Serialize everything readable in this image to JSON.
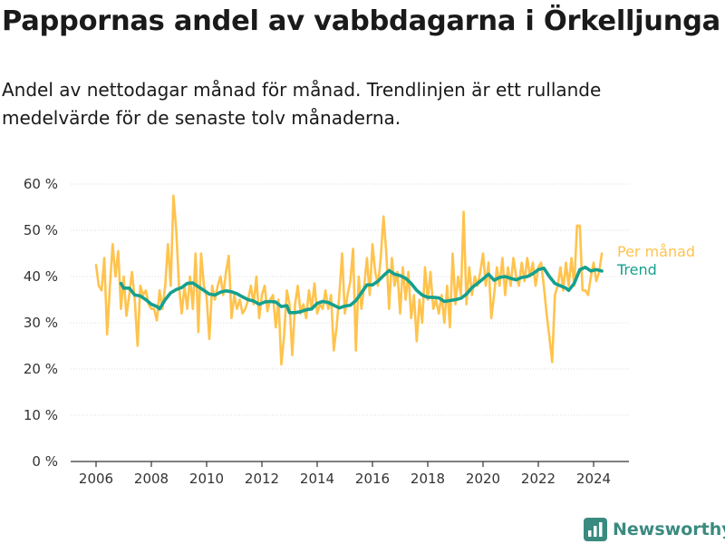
{
  "title": "Pappornas andel av vabbdagarna i Örkelljunga",
  "subtitle": "Andel av nettodagar månad för månad. Trendlinjen är ett rullande medelvärde för de senaste tolv månaderna.",
  "brand": "Newsworthy",
  "colors": {
    "monthly": "#FFC34D",
    "trend": "#16A08E",
    "axis": "#333333",
    "grid": "#DCDCDC",
    "brand": "#3A8A7F"
  },
  "chart_data": {
    "type": "line",
    "x_unit": "year",
    "xlim": [
      2006,
      2024.6
    ],
    "ylim": [
      0,
      60
    ],
    "x_ticks": [
      2006,
      2008,
      2010,
      2012,
      2014,
      2016,
      2018,
      2020,
      2022,
      2024
    ],
    "x_tick_labels": [
      "2006",
      "2008",
      "2010",
      "2012",
      "2014",
      "2016",
      "2018",
      "2020",
      "2022",
      "2024"
    ],
    "y_ticks": [
      0,
      10,
      20,
      30,
      40,
      50,
      60
    ],
    "y_tick_labels": [
      "0 %",
      "10 %",
      "20 %",
      "30 %",
      "40 %",
      "50 %",
      "60 %"
    ],
    "grid": "horizontal",
    "legend": "right-end-labels",
    "series": [
      {
        "name": "Per månad",
        "color": "#FFC34D",
        "points": [
          [
            2006.0,
            42.5
          ],
          [
            2006.1,
            38
          ],
          [
            2006.2,
            37
          ],
          [
            2006.3,
            44
          ],
          [
            2006.4,
            27.5
          ],
          [
            2006.5,
            38
          ],
          [
            2006.6,
            47
          ],
          [
            2006.7,
            40
          ],
          [
            2006.8,
            45.5
          ],
          [
            2006.9,
            33
          ],
          [
            2007.0,
            40
          ],
          [
            2007.1,
            31.5
          ],
          [
            2007.2,
            36
          ],
          [
            2007.3,
            41
          ],
          [
            2007.4,
            35
          ],
          [
            2007.5,
            25
          ],
          [
            2007.6,
            38
          ],
          [
            2007.7,
            36
          ],
          [
            2007.8,
            37
          ],
          [
            2007.9,
            34
          ],
          [
            2008.0,
            33
          ],
          [
            2008.1,
            33
          ],
          [
            2008.2,
            30.5
          ],
          [
            2008.3,
            37
          ],
          [
            2008.4,
            33
          ],
          [
            2008.5,
            38
          ],
          [
            2008.6,
            47
          ],
          [
            2008.7,
            38
          ],
          [
            2008.8,
            57.5
          ],
          [
            2008.9,
            50
          ],
          [
            2009.0,
            38
          ],
          [
            2009.1,
            32
          ],
          [
            2009.2,
            38
          ],
          [
            2009.3,
            33
          ],
          [
            2009.4,
            40
          ],
          [
            2009.5,
            33
          ],
          [
            2009.6,
            45
          ],
          [
            2009.7,
            28
          ],
          [
            2009.8,
            45
          ],
          [
            2009.9,
            38
          ],
          [
            2010.0,
            35.5
          ],
          [
            2010.1,
            26.5
          ],
          [
            2010.2,
            38
          ],
          [
            2010.3,
            35
          ],
          [
            2010.4,
            38
          ],
          [
            2010.5,
            40
          ],
          [
            2010.6,
            36
          ],
          [
            2010.7,
            41
          ],
          [
            2010.8,
            44.5
          ],
          [
            2010.9,
            31
          ],
          [
            2011.0,
            36
          ],
          [
            2011.1,
            33
          ],
          [
            2011.2,
            35
          ],
          [
            2011.3,
            32
          ],
          [
            2011.4,
            33
          ],
          [
            2011.5,
            35
          ],
          [
            2011.6,
            38
          ],
          [
            2011.7,
            34
          ],
          [
            2011.8,
            40
          ],
          [
            2011.9,
            31
          ],
          [
            2012.0,
            36
          ],
          [
            2012.1,
            38
          ],
          [
            2012.2,
            32.5
          ],
          [
            2012.3,
            35
          ],
          [
            2012.4,
            36
          ],
          [
            2012.5,
            29
          ],
          [
            2012.6,
            35
          ],
          [
            2012.7,
            21
          ],
          [
            2012.8,
            27
          ],
          [
            2012.9,
            37
          ],
          [
            2013.0,
            34
          ],
          [
            2013.1,
            23
          ],
          [
            2013.2,
            34
          ],
          [
            2013.3,
            38
          ],
          [
            2013.4,
            32
          ],
          [
            2013.5,
            34
          ],
          [
            2013.6,
            31
          ],
          [
            2013.7,
            37
          ],
          [
            2013.8,
            33
          ],
          [
            2013.9,
            38.5
          ],
          [
            2014.0,
            32
          ],
          [
            2014.1,
            34
          ],
          [
            2014.2,
            33
          ],
          [
            2014.3,
            37
          ],
          [
            2014.4,
            33
          ],
          [
            2014.5,
            36
          ],
          [
            2014.6,
            24
          ],
          [
            2014.7,
            29
          ],
          [
            2014.8,
            36
          ],
          [
            2014.9,
            45
          ],
          [
            2015.0,
            32
          ],
          [
            2015.1,
            36
          ],
          [
            2015.2,
            39
          ],
          [
            2015.3,
            46
          ],
          [
            2015.4,
            24
          ],
          [
            2015.5,
            40
          ],
          [
            2015.6,
            33
          ],
          [
            2015.7,
            38
          ],
          [
            2015.8,
            44
          ],
          [
            2015.9,
            36
          ],
          [
            2016.0,
            47
          ],
          [
            2016.1,
            41
          ],
          [
            2016.2,
            38
          ],
          [
            2016.3,
            44
          ],
          [
            2016.4,
            53
          ],
          [
            2016.5,
            45
          ],
          [
            2016.6,
            33
          ],
          [
            2016.7,
            44
          ],
          [
            2016.8,
            38
          ],
          [
            2016.9,
            41
          ],
          [
            2017.0,
            32
          ],
          [
            2017.1,
            42
          ],
          [
            2017.2,
            35
          ],
          [
            2017.3,
            41
          ],
          [
            2017.4,
            31
          ],
          [
            2017.5,
            36
          ],
          [
            2017.6,
            26
          ],
          [
            2017.7,
            35
          ],
          [
            2017.8,
            30
          ],
          [
            2017.9,
            42
          ],
          [
            2018.0,
            35
          ],
          [
            2018.1,
            41
          ],
          [
            2018.2,
            33
          ],
          [
            2018.3,
            35
          ],
          [
            2018.4,
            32
          ],
          [
            2018.5,
            36
          ],
          [
            2018.6,
            30
          ],
          [
            2018.7,
            38
          ],
          [
            2018.8,
            29
          ],
          [
            2018.9,
            45
          ],
          [
            2019.0,
            34
          ],
          [
            2019.1,
            40
          ],
          [
            2019.2,
            36
          ],
          [
            2019.3,
            54
          ],
          [
            2019.4,
            34
          ],
          [
            2019.5,
            42
          ],
          [
            2019.6,
            36
          ],
          [
            2019.7,
            40
          ],
          [
            2019.8,
            38
          ],
          [
            2019.9,
            41
          ],
          [
            2020.0,
            45
          ],
          [
            2020.1,
            38
          ],
          [
            2020.2,
            43
          ],
          [
            2020.3,
            31
          ],
          [
            2020.4,
            36
          ],
          [
            2020.5,
            42
          ],
          [
            2020.6,
            38
          ],
          [
            2020.7,
            44
          ],
          [
            2020.8,
            36
          ],
          [
            2020.9,
            42
          ],
          [
            2021.0,
            38
          ],
          [
            2021.1,
            44
          ],
          [
            2021.2,
            40
          ],
          [
            2021.3,
            38
          ],
          [
            2021.4,
            43
          ],
          [
            2021.5,
            39
          ],
          [
            2021.6,
            44
          ],
          [
            2021.7,
            40
          ],
          [
            2021.8,
            43
          ],
          [
            2021.9,
            38
          ],
          [
            2022.0,
            42
          ],
          [
            2022.1,
            43
          ],
          [
            2022.2,
            38
          ],
          [
            2022.3,
            32
          ],
          [
            2022.4,
            27
          ],
          [
            2022.5,
            21.5
          ],
          [
            2022.6,
            36
          ],
          [
            2022.7,
            38
          ],
          [
            2022.8,
            42
          ],
          [
            2022.9,
            37
          ],
          [
            2023.0,
            43
          ],
          [
            2023.1,
            38
          ],
          [
            2023.2,
            44
          ],
          [
            2023.3,
            38
          ],
          [
            2023.4,
            51
          ],
          [
            2023.5,
            51
          ],
          [
            2023.6,
            37
          ],
          [
            2023.7,
            37
          ],
          [
            2023.8,
            36
          ],
          [
            2023.9,
            40
          ],
          [
            2024.0,
            43
          ],
          [
            2024.1,
            39
          ],
          [
            2024.2,
            41
          ],
          [
            2024.3,
            45
          ]
        ]
      },
      {
        "name": "Trend",
        "color": "#16A08E",
        "points": [
          [
            2006.9,
            38.5
          ],
          [
            2007.0,
            37.5
          ],
          [
            2007.2,
            37.5
          ],
          [
            2007.4,
            36
          ],
          [
            2007.6,
            35.8
          ],
          [
            2007.8,
            35
          ],
          [
            2008.0,
            34
          ],
          [
            2008.2,
            33.5
          ],
          [
            2008.3,
            33
          ],
          [
            2008.5,
            35
          ],
          [
            2008.7,
            36.5
          ],
          [
            2008.9,
            37.2
          ],
          [
            2009.1,
            37.6
          ],
          [
            2009.3,
            38.5
          ],
          [
            2009.5,
            38.6
          ],
          [
            2009.7,
            37.8
          ],
          [
            2009.9,
            37
          ],
          [
            2010.1,
            36.2
          ],
          [
            2010.3,
            36
          ],
          [
            2010.5,
            36.6
          ],
          [
            2010.7,
            36.9
          ],
          [
            2010.9,
            36.7
          ],
          [
            2011.1,
            36.3
          ],
          [
            2011.3,
            35.6
          ],
          [
            2011.5,
            35
          ],
          [
            2011.7,
            34.7
          ],
          [
            2011.9,
            34
          ],
          [
            2012.1,
            34.5
          ],
          [
            2012.3,
            34.6
          ],
          [
            2012.5,
            34.5
          ],
          [
            2012.7,
            33.5
          ],
          [
            2012.9,
            33.7
          ],
          [
            2013.0,
            32.2
          ],
          [
            2013.2,
            32.2
          ],
          [
            2013.4,
            32.4
          ],
          [
            2013.6,
            32.8
          ],
          [
            2013.8,
            33
          ],
          [
            2014.0,
            34.2
          ],
          [
            2014.2,
            34.6
          ],
          [
            2014.4,
            34.4
          ],
          [
            2014.6,
            33.8
          ],
          [
            2014.8,
            33.2
          ],
          [
            2015.0,
            33.6
          ],
          [
            2015.2,
            33.8
          ],
          [
            2015.4,
            34.8
          ],
          [
            2015.6,
            36.5
          ],
          [
            2015.8,
            38.2
          ],
          [
            2016.0,
            38.2
          ],
          [
            2016.2,
            39
          ],
          [
            2016.4,
            40.2
          ],
          [
            2016.6,
            41.3
          ],
          [
            2016.8,
            40.5
          ],
          [
            2017.0,
            40.2
          ],
          [
            2017.2,
            39.6
          ],
          [
            2017.4,
            38.5
          ],
          [
            2017.6,
            37
          ],
          [
            2017.8,
            36
          ],
          [
            2018.0,
            35.5
          ],
          [
            2018.2,
            35.5
          ],
          [
            2018.4,
            35.4
          ],
          [
            2018.6,
            34.6
          ],
          [
            2018.8,
            34.8
          ],
          [
            2019.0,
            35
          ],
          [
            2019.2,
            35.3
          ],
          [
            2019.4,
            36.2
          ],
          [
            2019.6,
            37.6
          ],
          [
            2019.8,
            38.5
          ],
          [
            2020.0,
            39.5
          ],
          [
            2020.2,
            40.5
          ],
          [
            2020.4,
            39.2
          ],
          [
            2020.6,
            39.8
          ],
          [
            2020.8,
            40
          ],
          [
            2021.0,
            39.6
          ],
          [
            2021.2,
            39.3
          ],
          [
            2021.4,
            39.8
          ],
          [
            2021.6,
            40
          ],
          [
            2021.8,
            40.6
          ],
          [
            2022.0,
            41.5
          ],
          [
            2022.2,
            41.8
          ],
          [
            2022.4,
            40
          ],
          [
            2022.6,
            38.5
          ],
          [
            2022.8,
            38
          ],
          [
            2023.0,
            37.5
          ],
          [
            2023.1,
            37
          ],
          [
            2023.3,
            38.5
          ],
          [
            2023.5,
            41.5
          ],
          [
            2023.7,
            42
          ],
          [
            2023.9,
            41.2
          ],
          [
            2024.1,
            41.5
          ],
          [
            2024.3,
            41.2
          ]
        ]
      }
    ]
  }
}
